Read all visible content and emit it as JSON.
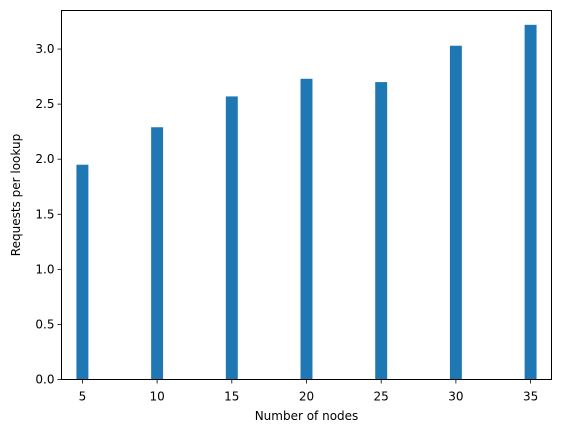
{
  "chart_data": {
    "type": "bar",
    "title": "",
    "xlabel": "Number of nodes",
    "ylabel": "Requests per lookup",
    "x": [
      5,
      10,
      15,
      20,
      25,
      30,
      35
    ],
    "values": [
      1.95,
      2.29,
      2.57,
      2.73,
      2.7,
      3.03,
      3.22
    ],
    "xlim": [
      3.6,
      36.4
    ],
    "ylim": [
      0,
      3.35
    ],
    "xticks": [
      5,
      10,
      15,
      20,
      25,
      30,
      35
    ],
    "yticks": [
      "0.0",
      "0.5",
      "1.0",
      "1.5",
      "2.0",
      "2.5",
      "3.0"
    ],
    "bar_width": 0.8,
    "bar_color": "#1f77b4",
    "grid": false,
    "legend": "none"
  }
}
